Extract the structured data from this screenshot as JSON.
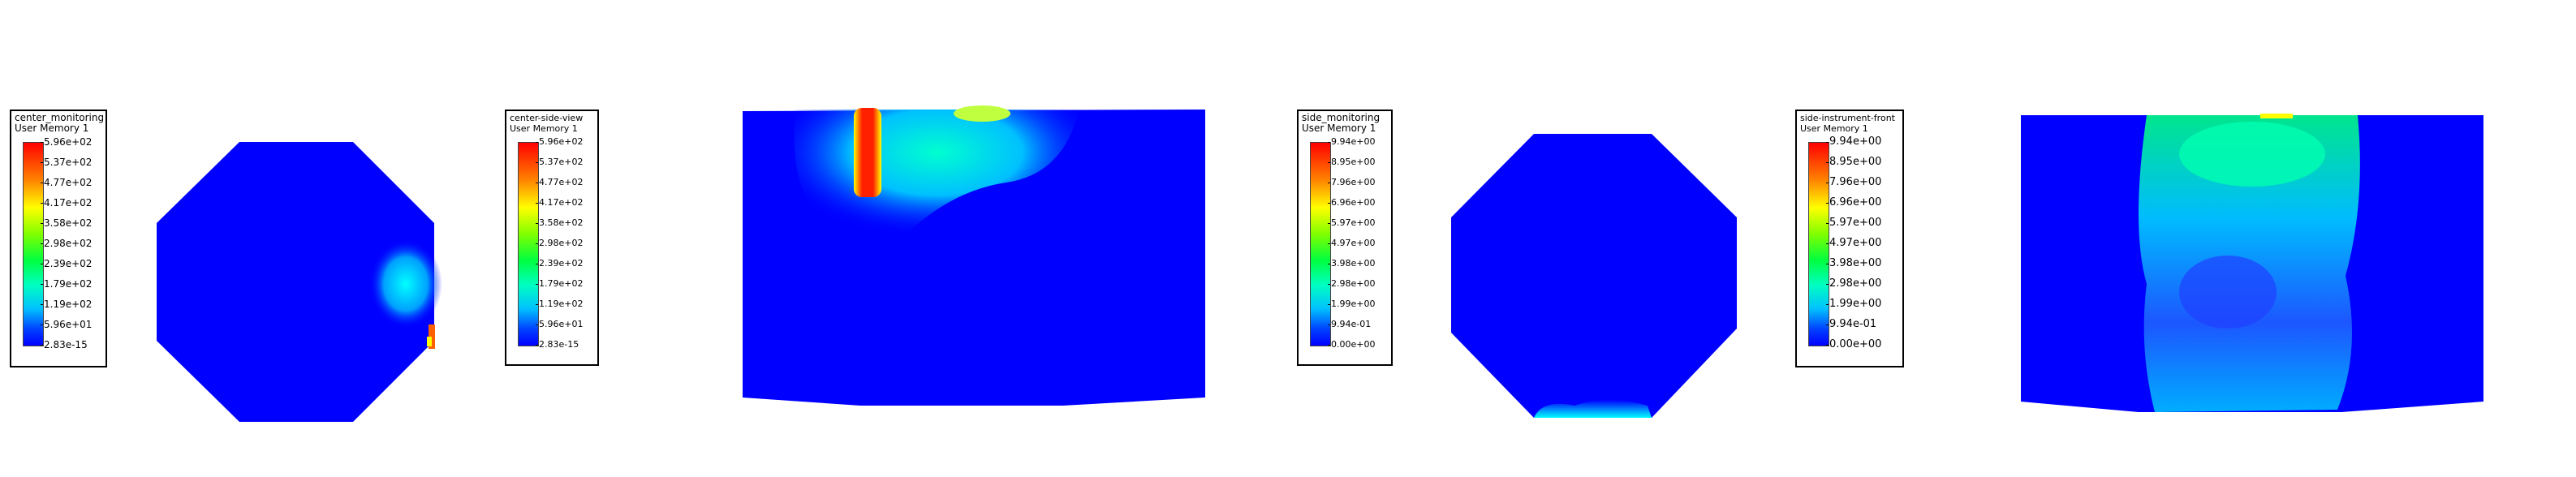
{
  "panels": [
    {
      "id": "center_monitoring",
      "title": "center_monitoring",
      "subtitle": "User Memory 1",
      "ticks": [
        "5.96e+02",
        "5.37e+02",
        "4.77e+02",
        "4.17e+02",
        "3.58e+02",
        "2.98e+02",
        "2.39e+02",
        "1.79e+02",
        "1.19e+02",
        "5.96e+01",
        "2.83e-15"
      ]
    },
    {
      "id": "center_side_view",
      "title": "center-side-view",
      "subtitle": "User Memory 1",
      "ticks": [
        "5.96e+02",
        "5.37e+02",
        "4.77e+02",
        "4.17e+02",
        "3.58e+02",
        "2.98e+02",
        "2.39e+02",
        "1.79e+02",
        "1.19e+02",
        "5.96e+01",
        "2.83e-15"
      ]
    },
    {
      "id": "side_monitoring",
      "title": "side_monitoring",
      "subtitle": "User Memory 1",
      "ticks": [
        "9.94e+00",
        "8.95e+00",
        "7.96e+00",
        "6.96e+00",
        "5.97e+00",
        "4.97e+00",
        "3.98e+00",
        "2.98e+00",
        "1.99e+00",
        "9.94e-01",
        "0.00e+00"
      ]
    },
    {
      "id": "side_instrument_front",
      "title": "side-instrument-front",
      "subtitle": "User Memory 1",
      "ticks": [
        "9.94e+00",
        "8.95e+00",
        "7.96e+00",
        "6.96e+00",
        "5.97e+00",
        "4.97e+00",
        "3.98e+00",
        "2.98e+00",
        "1.99e+00",
        "9.94e-01",
        "0.00e+00"
      ]
    }
  ],
  "colors": {
    "field_base": "#0000ff",
    "legend_border": "#000000"
  }
}
